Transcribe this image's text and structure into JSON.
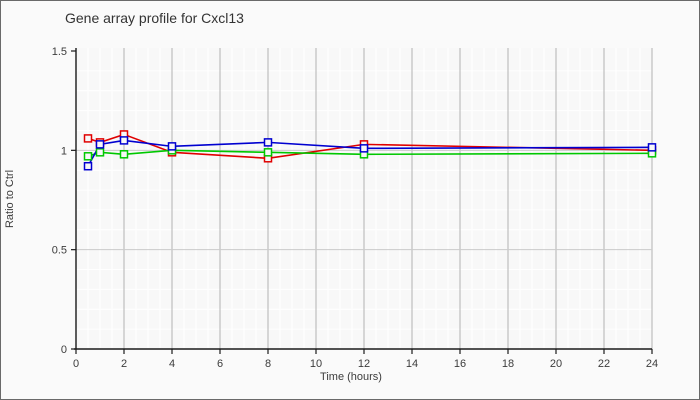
{
  "window": {
    "background": "#fafafa",
    "border_color": "#6a6a6a"
  },
  "chart_data": {
    "type": "line",
    "title": "Gene array profile for Cxcl13",
    "xlabel": "Time (hours)",
    "ylabel": "Ratio to Ctrl",
    "xlim": [
      0,
      24
    ],
    "ylim": [
      0,
      1.5
    ],
    "xticks": [
      0,
      2,
      4,
      6,
      8,
      10,
      12,
      14,
      16,
      18,
      20,
      22,
      24
    ],
    "yticks": [
      0,
      0.5,
      1,
      1.5
    ],
    "ytick_labels": [
      "0",
      "0.5",
      "1",
      "1.5"
    ],
    "x_minor_step": 0.5,
    "y_minor_step": 0.1,
    "grid": {
      "plot_bg": "#f8f8f8",
      "minor_line": "#ffffff",
      "major_vline": "#b2b2b2",
      "major_hline": "#cbcbcb",
      "axis_color": "#1a1a1a",
      "tick_label_color": "#3c3c3c"
    },
    "legend": "none",
    "marker": "open-square",
    "x": [
      0.5,
      1,
      2,
      4,
      8,
      12,
      24
    ],
    "series": [
      {
        "name": "red",
        "color": "#e00000",
        "values": [
          1.06,
          1.04,
          1.08,
          0.99,
          0.96,
          1.03,
          1.0
        ]
      },
      {
        "name": "green",
        "color": "#00c800",
        "values": [
          0.97,
          0.99,
          0.98,
          1.0,
          0.99,
          0.98,
          0.985
        ]
      },
      {
        "name": "blue",
        "color": "#0000d0",
        "values": [
          0.92,
          1.03,
          1.05,
          1.02,
          1.04,
          1.01,
          1.015
        ]
      }
    ]
  }
}
